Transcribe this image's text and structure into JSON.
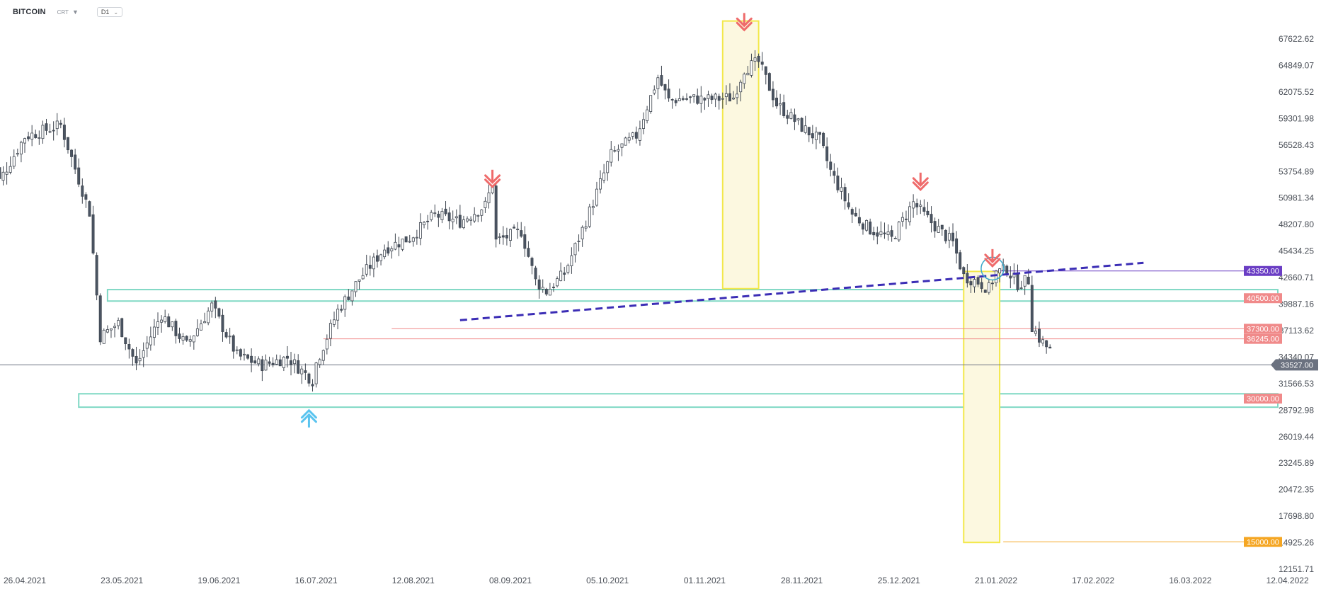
{
  "header": {
    "symbol": "BITCOIN",
    "market_type": "CRT",
    "timeframe": "D1"
  },
  "colors": {
    "up_candle": "#ffffff",
    "down_candle": "#4b5563",
    "candle_outline": "#3f4650",
    "support_zone": "#7fd8c4",
    "highlight_zone": "#f3e84a",
    "trendline": "#3b2db5",
    "sell_arrow": "#ef6b6b",
    "buy_arrow": "#5bc4ef",
    "level_43350": "#6a3dc4",
    "level_red": "#f08a8a",
    "level_15000": "#f5a623",
    "current_price": "#6b7280"
  },
  "chart_data": {
    "type": "candlestick",
    "title": "",
    "symbol": "BITCOIN",
    "timeframe": "D1",
    "ylim": [
      12151.71,
      70396.53
    ],
    "y_ticks": [
      "67622.62",
      "64849.07",
      "62075.52",
      "59301.98",
      "56528.43",
      "53754.89",
      "50981.34",
      "48207.80",
      "45434.25",
      "42660.71",
      "39887.16",
      "37113.62",
      "34340.07",
      "31566.53",
      "28792.98",
      "26019.44",
      "23245.89",
      "20472.35",
      "17698.80",
      "14925.26",
      "12151.71"
    ],
    "x_ticks": [
      "26.04.2021",
      "23.05.2021",
      "19.06.2021",
      "16.07.2021",
      "12.08.2021",
      "08.09.2021",
      "05.10.2021",
      "01.11.2021",
      "28.11.2021",
      "25.12.2021",
      "21.01.2022",
      "17.02.2022",
      "16.03.2022",
      "12.04.2022"
    ],
    "x_ticks_days_apart": 27,
    "first_candle_date": "16.04.2021",
    "close_path": [
      [
        0,
        57200
      ],
      [
        3,
        52800
      ],
      [
        10,
        57400
      ],
      [
        20,
        58600
      ],
      [
        28,
        49500
      ],
      [
        31,
        36500
      ],
      [
        36,
        37900
      ],
      [
        41,
        33500
      ],
      [
        48,
        38800
      ],
      [
        55,
        35600
      ],
      [
        62,
        39700
      ],
      [
        69,
        34500
      ],
      [
        76,
        33500
      ],
      [
        83,
        34300
      ],
      [
        90,
        31900
      ],
      [
        91,
        33700
      ],
      [
        97,
        39200
      ],
      [
        103,
        42500
      ],
      [
        110,
        45700
      ],
      [
        117,
        46800
      ],
      [
        124,
        49200
      ],
      [
        131,
        48500
      ],
      [
        138,
        50200
      ],
      [
        140,
        52500
      ],
      [
        141,
        46500
      ],
      [
        148,
        47500
      ],
      [
        152,
        42300
      ],
      [
        155,
        41200
      ],
      [
        160,
        43100
      ],
      [
        166,
        48600
      ],
      [
        173,
        55500
      ],
      [
        180,
        57500
      ],
      [
        186,
        63600
      ],
      [
        189,
        61200
      ],
      [
        193,
        61400
      ],
      [
        200,
        61300
      ],
      [
        207,
        61500
      ],
      [
        210,
        64500
      ],
      [
        214,
        65200
      ],
      [
        219,
        60800
      ],
      [
        226,
        58400
      ],
      [
        231,
        57000
      ],
      [
        234,
        53800
      ],
      [
        240,
        49300
      ],
      [
        245,
        47700
      ],
      [
        251,
        46700
      ],
      [
        257,
        50500
      ],
      [
        260,
        49200
      ],
      [
        264,
        47700
      ],
      [
        268,
        46300
      ],
      [
        271,
        42800
      ],
      [
        275,
        42200
      ],
      [
        278,
        41500
      ],
      [
        280,
        43200
      ],
      [
        283,
        43500
      ],
      [
        286,
        42000
      ],
      [
        289,
        42400
      ],
      [
        290,
        37600
      ],
      [
        292,
        36300
      ],
      [
        295,
        35000
      ]
    ],
    "current_price": "33527.00",
    "levels": [
      {
        "price": 43350,
        "label": "43350.00",
        "color": "#6a3dc4"
      },
      {
        "price": 40500,
        "label": "40500.00",
        "color": "#f08a8a"
      },
      {
        "price": 37300,
        "label": "37300.00",
        "color": "#f08a8a"
      },
      {
        "price": 36245,
        "label": "36245.00",
        "color": "#f08a8a"
      },
      {
        "price": 30000,
        "label": "30000.00",
        "color": "#f08a8a"
      },
      {
        "price": 15000,
        "label": "15000.00",
        "color": "#f5a623"
      }
    ],
    "support_zones": [
      {
        "from": 40200,
        "to": 41400
      },
      {
        "from": 29100,
        "to": 30500
      }
    ],
    "highlight_zones": [
      {
        "day_from": 204,
        "day_to": 214,
        "price_from": 41500,
        "price_to": 69500
      },
      {
        "day_from": 271,
        "day_to": 281,
        "price_from": 14950,
        "price_to": 43300
      }
    ],
    "trendline": {
      "from": [
        131,
        38200
      ],
      "to": [
        321,
        44200
      ],
      "style": "dashed"
    },
    "sell_arrows": [
      {
        "day": 140,
        "price": 52900
      },
      {
        "day": 210,
        "price": 69300
      },
      {
        "day": 259,
        "price": 52600
      },
      {
        "day": 279,
        "price": 44600
      }
    ],
    "buy_arrows": [
      {
        "day": 89,
        "price": 29200
      }
    ]
  }
}
